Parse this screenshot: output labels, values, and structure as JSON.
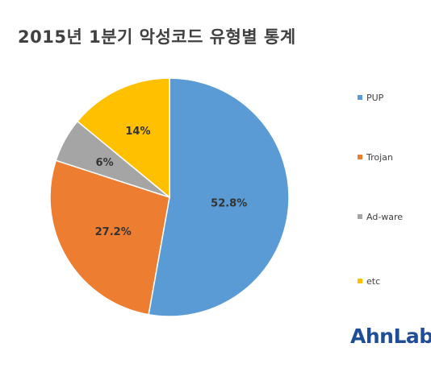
{
  "chart_data": {
    "type": "pie",
    "title": "2015년 1분기 악성코드 유형별 통계",
    "categories": [
      "PUP",
      "Trojan",
      "Ad-ware",
      "etc"
    ],
    "values": [
      52.8,
      27.2,
      6,
      14
    ],
    "labels": [
      "52.8%",
      "27.2%",
      "6%",
      "14%"
    ],
    "colors": [
      "#5b9bd5",
      "#ed7d31",
      "#a5a5a5",
      "#ffc000"
    ],
    "legend_position": "right",
    "start_angle_deg": 0,
    "direction": "clockwise"
  },
  "logo": "AhnLab"
}
